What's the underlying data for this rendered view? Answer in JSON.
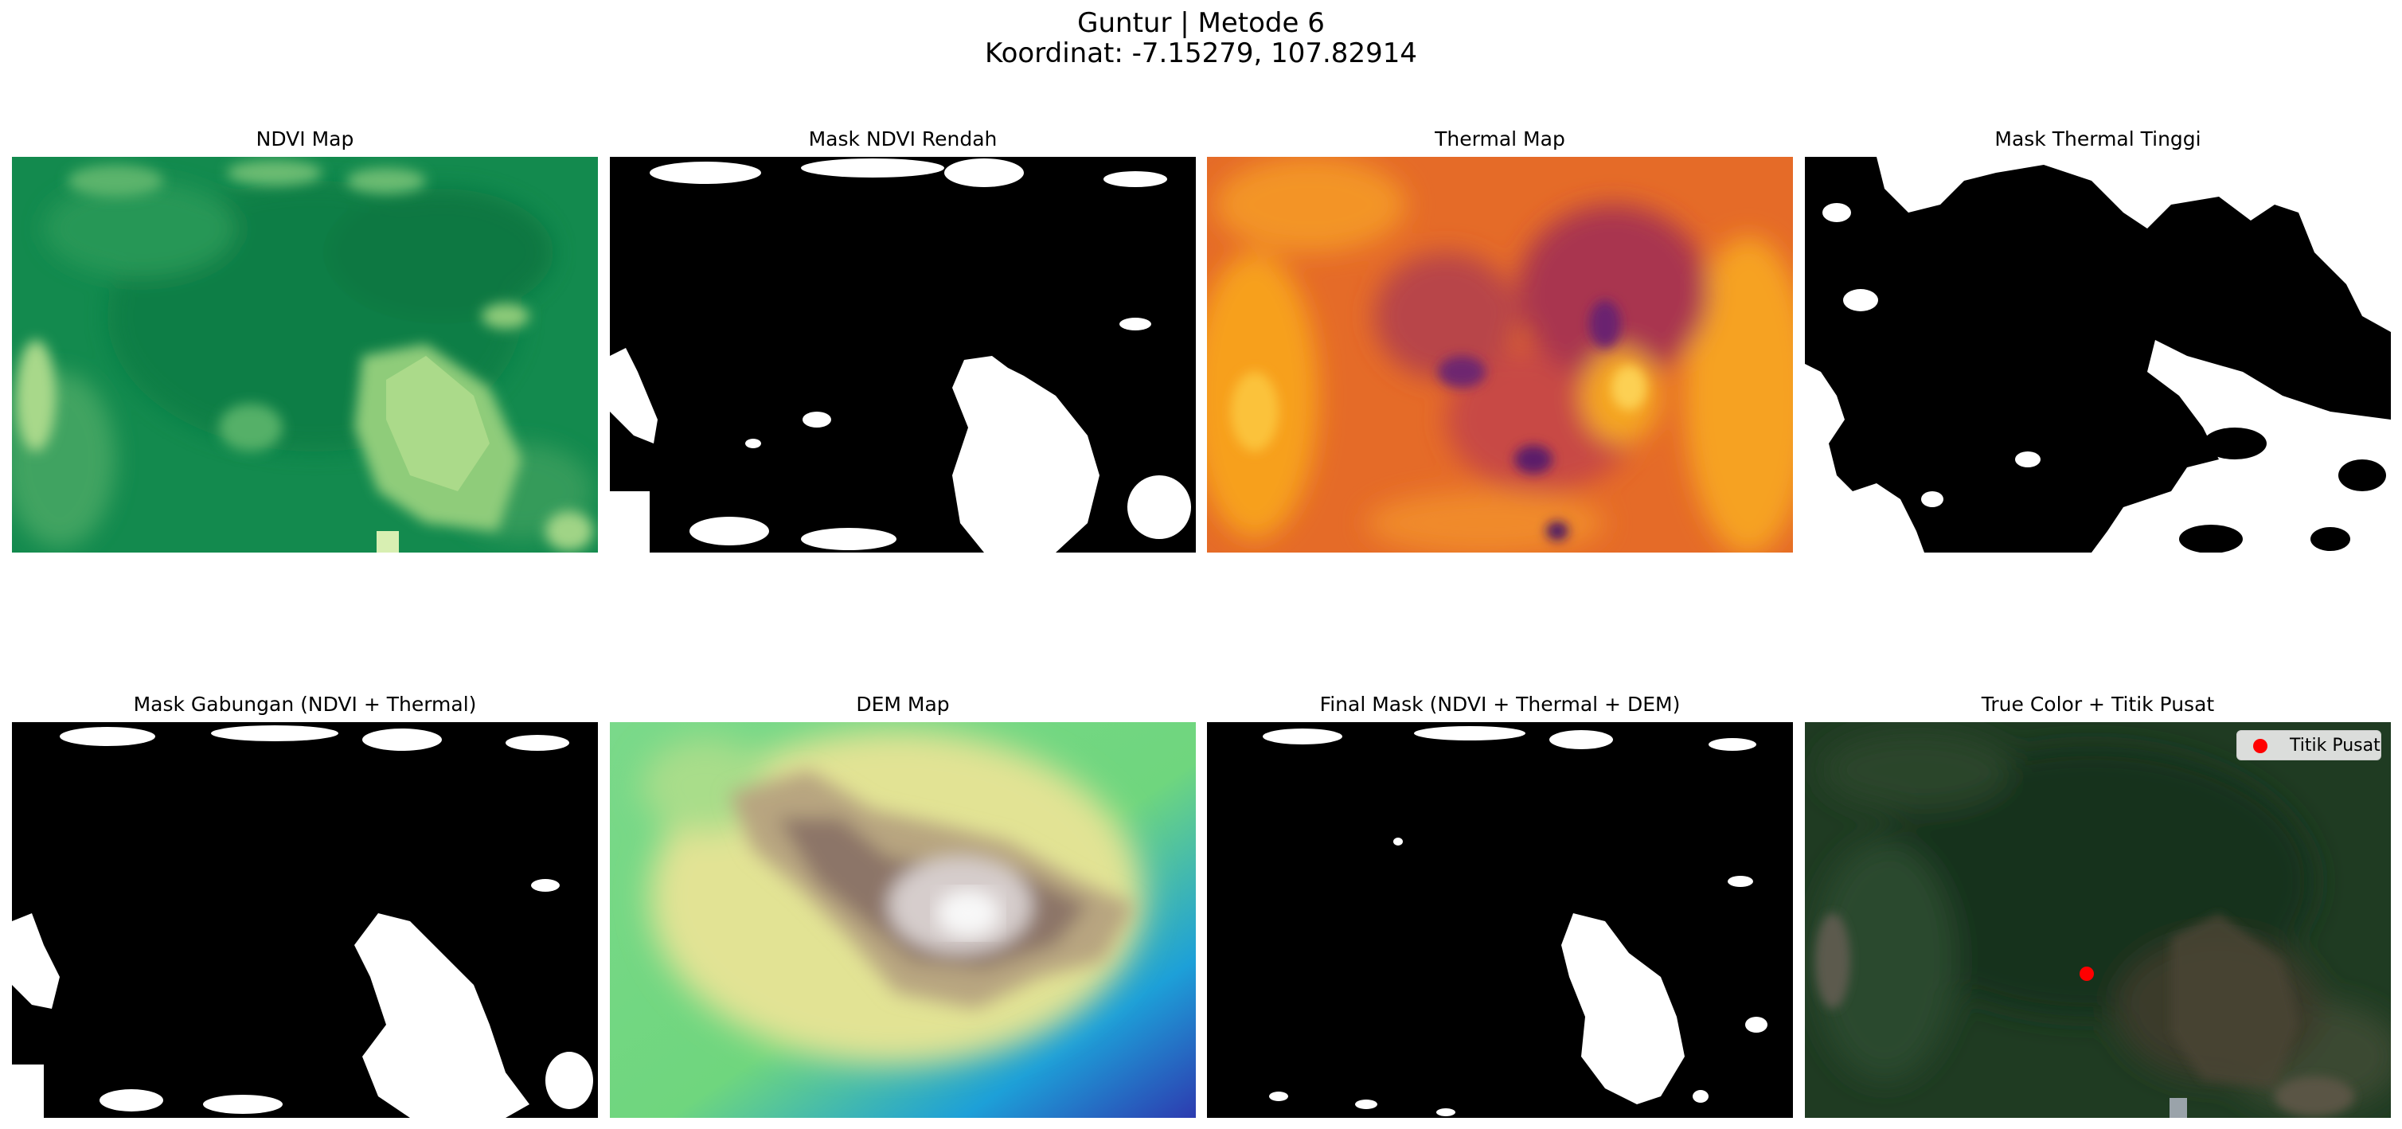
{
  "figure": {
    "title_line1": "Guntur | Metode 6",
    "title_line2": "Koordinat: -7.15279, 107.82914"
  },
  "panels": [
    {
      "title": "NDVI Map",
      "colormap": "greens"
    },
    {
      "title": "Mask NDVI Rendah",
      "colormap": "binary mask"
    },
    {
      "title": "Thermal Map",
      "colormap": "inferno"
    },
    {
      "title": "Mask Thermal Tinggi",
      "colormap": "binary mask"
    },
    {
      "title": "Mask Gabungan (NDVI + Thermal)",
      "colormap": "binary mask"
    },
    {
      "title": "DEM Map",
      "colormap": "terrain"
    },
    {
      "title": "Final Mask (NDVI + Thermal + DEM)",
      "colormap": "binary mask"
    },
    {
      "title": "True Color + Titik Pusat",
      "colormap": "rgb"
    }
  ],
  "legend": {
    "label": "Titik Pusat",
    "marker_color": "#ff0000"
  },
  "colors": {
    "mask_background": "#000000",
    "mask_foreground": "#ffffff",
    "ndvi_dark": "#118a4c",
    "ndvi_light": "#c8e89a",
    "thermal_hot": "#fbb018",
    "thermal_cool": "#6b2370",
    "dem_low": "#2d3bb0",
    "dem_mid": "#e8e79a",
    "dem_high": "#f8f8f8",
    "truecolor_base": "#1f3b22"
  }
}
